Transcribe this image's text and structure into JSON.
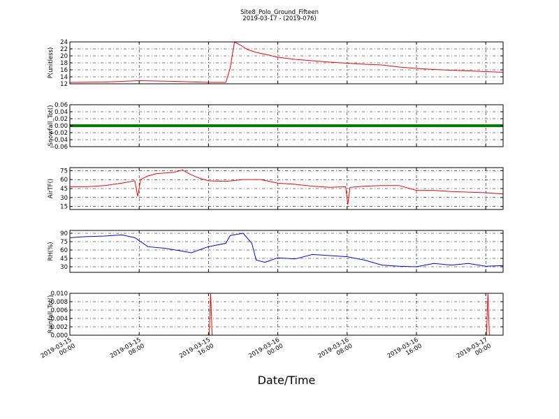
{
  "figure": {
    "title_line1": "Site8_Polo_Ground_Fifteen",
    "title_line2": "2019-03-17 - (2019-076)",
    "xlabel": "Date/Time",
    "x_ticks": [
      {
        "line1": "2019-03-15",
        "line2": "00:00"
      },
      {
        "line1": "2019-03-15",
        "line2": "08:00"
      },
      {
        "line1": "2019-03-15",
        "line2": "16:00"
      },
      {
        "line1": "2019-03-16",
        "line2": "00:00"
      },
      {
        "line1": "2019-03-16",
        "line2": "08:00"
      },
      {
        "line1": "2019-03-16",
        "line2": "16:00"
      },
      {
        "line1": "2019-03-17",
        "line2": "00:00"
      }
    ]
  },
  "chart_data": [
    {
      "type": "line",
      "ylabel": "P(unitless)",
      "ylim": [
        12,
        24
      ],
      "yticks": [
        "12",
        "14",
        "16",
        "18",
        "20",
        "22",
        "24"
      ],
      "color": "#ff0000",
      "grid": true,
      "series": [
        {
          "x": [
            "2019-03-15 00:00",
            "2019-03-15 04:00",
            "2019-03-15 08:00",
            "2019-03-15 12:00",
            "2019-03-15 16:00",
            "2019-03-15 18:00",
            "2019-03-15 18:30",
            "2019-03-15 19:00",
            "2019-03-15 19:45",
            "2019-03-15 20:30",
            "2019-03-15 21:30",
            "2019-03-15 23:00",
            "2019-03-16 00:00",
            "2019-03-16 02:00",
            "2019-03-16 04:00",
            "2019-03-16 06:00",
            "2019-03-16 08:00",
            "2019-03-16 10:00",
            "2019-03-16 12:00",
            "2019-03-16 14:00",
            "2019-03-16 16:00",
            "2019-03-16 18:00",
            "2019-03-16 20:00",
            "2019-03-16 22:00",
            "2019-03-17 00:00",
            "2019-03-17 02:00"
          ],
          "y": [
            12.4,
            12.5,
            12.9,
            12.7,
            12.4,
            12.4,
            16.5,
            24.0,
            23.0,
            21.8,
            21.0,
            20.2,
            19.6,
            19.0,
            18.6,
            18.2,
            17.9,
            17.6,
            17.4,
            16.8,
            16.4,
            16.1,
            15.9,
            15.7,
            15.5,
            15.3
          ]
        }
      ]
    },
    {
      "type": "line",
      "ylabel": "Snowfall_Tot()",
      "ylim": [
        -0.06,
        0.06
      ],
      "yticks": [
        "−0.06",
        "−0.04",
        "−0.02",
        "0.00",
        "0.02",
        "0.04",
        "0.06"
      ],
      "color": "#008000",
      "grid": true,
      "series": [
        {
          "x": [
            "2019-03-15 00:00",
            "2019-03-17 02:00"
          ],
          "y": [
            0.0,
            0.0
          ]
        }
      ]
    },
    {
      "type": "line",
      "ylabel": "AirTF()",
      "ylim": [
        10,
        80
      ],
      "yticks": [
        "15",
        "30",
        "45",
        "60",
        "75"
      ],
      "color": "#ff0000",
      "grid": true,
      "series": [
        {
          "x": [
            "2019-03-15 00:00",
            "2019-03-15 02:00",
            "2019-03-15 04:00",
            "2019-03-15 06:00",
            "2019-03-15 07:30",
            "2019-03-15 07:50",
            "2019-03-15 08:10",
            "2019-03-15 09:00",
            "2019-03-15 10:00",
            "2019-03-15 12:00",
            "2019-03-15 13:00",
            "2019-03-15 14:00",
            "2019-03-15 15:00",
            "2019-03-15 16:00",
            "2019-03-15 18:00",
            "2019-03-15 20:00",
            "2019-03-15 22:00",
            "2019-03-16 00:00",
            "2019-03-16 02:00",
            "2019-03-16 04:00",
            "2019-03-16 06:00",
            "2019-03-16 07:50",
            "2019-03-16 08:05",
            "2019-03-16 08:20",
            "2019-03-16 10:00",
            "2019-03-16 12:00",
            "2019-03-16 14:00",
            "2019-03-16 16:00",
            "2019-03-16 18:00",
            "2019-03-16 20:00",
            "2019-03-16 22:00",
            "2019-03-17 00:00",
            "2019-03-17 02:00"
          ],
          "y": [
            48,
            48,
            50,
            54,
            58,
            32,
            60,
            66,
            70,
            72,
            76,
            68,
            62,
            58,
            57,
            60,
            60,
            54,
            52,
            49,
            47,
            48,
            18,
            47,
            49,
            50,
            50,
            42,
            42,
            40,
            39,
            38,
            36
          ]
        }
      ]
    },
    {
      "type": "line",
      "ylabel": "RH(%)",
      "ylim": [
        20,
        95
      ],
      "yticks": [
        "30",
        "45",
        "60",
        "75",
        "90"
      ],
      "color": "#0000ff",
      "grid": true,
      "series": [
        {
          "x": [
            "2019-03-15 00:00",
            "2019-03-15 02:00",
            "2019-03-15 04:00",
            "2019-03-15 06:00",
            "2019-03-15 07:30",
            "2019-03-15 09:00",
            "2019-03-15 11:00",
            "2019-03-15 13:00",
            "2019-03-15 14:00",
            "2019-03-15 16:00",
            "2019-03-15 18:00",
            "2019-03-15 18:30",
            "2019-03-15 20:00",
            "2019-03-15 21:00",
            "2019-03-15 21:30",
            "2019-03-15 22:30",
            "2019-03-16 00:00",
            "2019-03-16 02:00",
            "2019-03-16 04:00",
            "2019-03-16 06:00",
            "2019-03-16 08:00",
            "2019-03-16 10:00",
            "2019-03-16 12:00",
            "2019-03-16 14:00",
            "2019-03-16 16:00",
            "2019-03-16 18:00",
            "2019-03-16 20:00",
            "2019-03-16 22:00",
            "2019-03-17 00:00",
            "2019-03-17 02:00"
          ],
          "y": [
            82,
            84,
            85,
            87,
            82,
            66,
            63,
            58,
            55,
            66,
            72,
            86,
            90,
            72,
            42,
            38,
            46,
            44,
            52,
            50,
            48,
            42,
            33,
            31,
            30,
            36,
            33,
            36,
            31,
            32
          ]
        }
      ]
    },
    {
      "type": "line",
      "ylabel": "Rainfall_Tot()",
      "ylim": [
        0.0,
        0.01
      ],
      "yticks": [
        "0.000",
        "0.002",
        "0.004",
        "0.006",
        "0.008",
        "0.010"
      ],
      "color": "#ff0000",
      "grid": true,
      "series": [
        {
          "x": [
            "2019-03-15 00:00",
            "2019-03-15 16:00",
            "2019-03-15 16:05",
            "2019-03-15 16:15",
            "2019-03-15 16:25",
            "2019-03-17 00:00",
            "2019-03-17 00:05",
            "2019-03-17 00:15",
            "2019-03-17 00:25",
            "2019-03-17 02:00"
          ],
          "y": [
            0,
            0,
            0,
            0.01,
            0,
            0,
            0,
            0.01,
            0,
            0
          ]
        }
      ]
    }
  ]
}
